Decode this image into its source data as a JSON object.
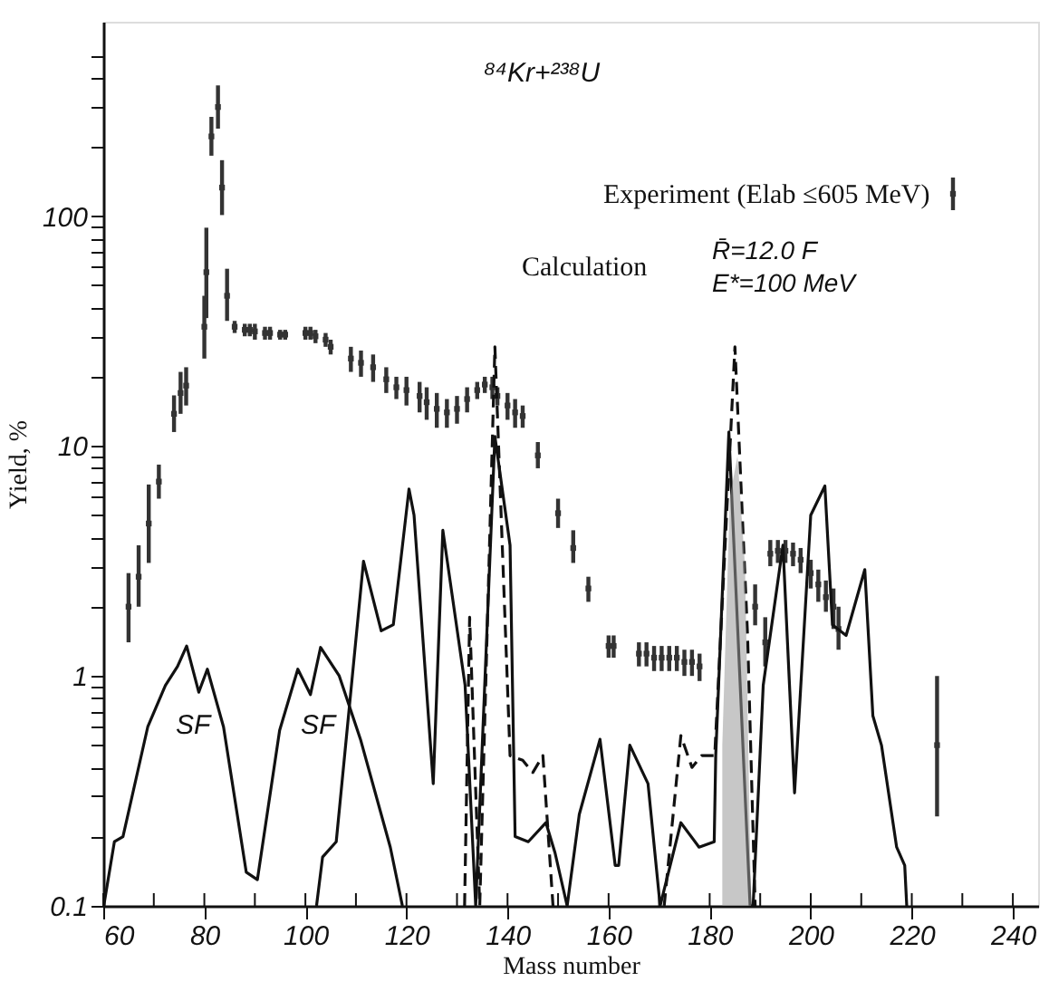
{
  "chart_data": {
    "type": "line",
    "xlabel": "Mass number",
    "ylabel": "Yield, %",
    "log": "y",
    "grid": false,
    "legend": "top right",
    "xlim": [
      60,
      245
    ],
    "ylim": [
      0.1,
      700
    ],
    "xticks": [
      60,
      {
        "value": 70,
        "label": null
      },
      80,
      {
        "value": 90,
        "label": null
      },
      100,
      {
        "value": 110,
        "label": null
      },
      120,
      {
        "value": 130,
        "label": null
      },
      140,
      {
        "value": 150,
        "label": null
      },
      160,
      {
        "value": 170,
        "label": null
      },
      180,
      {
        "value": 190,
        "label": null
      },
      200,
      {
        "value": 210,
        "label": null
      },
      220,
      {
        "value": 230,
        "label": null
      },
      240
    ],
    "yticks": [
      0.1,
      {
        "value": 0.2,
        "label": null
      },
      {
        "value": 0.3,
        "label": null
      },
      {
        "value": 0.4,
        "label": null
      },
      {
        "value": 0.5,
        "label": null
      },
      {
        "value": 0.6,
        "label": null
      },
      {
        "value": 0.7,
        "label": null
      },
      {
        "value": 0.8,
        "label": null
      },
      {
        "value": 0.9,
        "label": null
      },
      1,
      {
        "value": 2,
        "label": null
      },
      {
        "value": 3,
        "label": null
      },
      {
        "value": 4,
        "label": null
      },
      {
        "value": 5,
        "label": null
      },
      {
        "value": 6,
        "label": null
      },
      {
        "value": 7,
        "label": null
      },
      {
        "value": 8,
        "label": null
      },
      {
        "value": 9,
        "label": null
      },
      10,
      {
        "value": 20,
        "label": null
      },
      {
        "value": 30,
        "label": null
      },
      {
        "value": 40,
        "label": null
      },
      {
        "value": 50,
        "label": null
      },
      {
        "value": 60,
        "label": null
      },
      {
        "value": 70,
        "label": null
      },
      {
        "value": 80,
        "label": null
      },
      {
        "value": 90,
        "label": null
      },
      100,
      {
        "value": 200,
        "label": null
      },
      {
        "value": 300,
        "label": null
      },
      {
        "value": 400,
        "label": null
      },
      {
        "value": 500,
        "label": null
      }
    ],
    "annotations": [
      "⁸⁴Kr+²³⁸U",
      "Calculation",
      "R̄=12.0 F",
      "E*=100 MeV",
      "SF",
      "SF"
    ],
    "series": [
      {
        "name": "Experiment (Elab ≤605 MeV)",
        "type": "scatter",
        "marker": "square",
        "color": "#333333",
        "x": [
          65,
          67,
          69,
          71,
          74,
          75.3,
          76.4,
          80,
          80.4,
          81.4,
          82.7,
          83.5,
          84.5,
          86,
          88,
          89,
          90,
          92,
          93,
          95,
          96,
          100,
          101,
          102,
          104,
          105,
          109,
          111,
          113.4,
          116,
          118,
          120,
          122.6,
          124,
          126,
          128,
          130,
          132,
          134,
          135.5,
          137,
          138,
          140,
          141.5,
          143,
          146,
          150,
          153,
          156,
          160,
          161,
          166,
          167.5,
          169,
          170.5,
          172,
          173.5,
          175,
          176.5,
          178,
          189,
          191,
          192,
          193.5,
          195,
          196.5,
          198,
          200,
          201.5,
          203,
          204.5,
          205.5,
          225
        ],
        "values": [
          2.0,
          2.7,
          4.6,
          7.0,
          13.8,
          17,
          18.3,
          33,
          57,
          222,
          298,
          133,
          45,
          33,
          32,
          32,
          31.5,
          31,
          31,
          30.5,
          30.5,
          31,
          31,
          30,
          29,
          27,
          24,
          23,
          22,
          19.5,
          18,
          17.5,
          16.5,
          15.5,
          14.5,
          14,
          14.5,
          16,
          17.5,
          18.5,
          18,
          16.5,
          15,
          14,
          13.5,
          9.1,
          5.1,
          3.6,
          2.4,
          1.35,
          1.35,
          1.25,
          1.25,
          1.2,
          1.2,
          1.2,
          1.2,
          1.15,
          1.15,
          1.1,
          2.0,
          1.4,
          3.4,
          3.5,
          3.5,
          3.4,
          3.2,
          2.8,
          2.5,
          2.2,
          2.0,
          1.6,
          0.5
        ],
        "errors": [
          [
            1.4,
            2.8
          ],
          [
            2.0,
            3.7
          ],
          [
            3.1,
            6.8
          ],
          [
            5.9,
            8.3
          ],
          [
            11.5,
            16.6
          ],
          [
            13.8,
            21
          ],
          [
            15,
            22
          ],
          [
            24,
            45
          ],
          [
            36,
            89
          ],
          [
            183,
            270
          ],
          [
            240,
            370
          ],
          [
            101,
            175
          ],
          [
            35,
            59
          ],
          [
            31,
            35
          ],
          [
            30,
            34
          ],
          [
            30,
            34
          ],
          [
            29,
            34
          ],
          [
            29,
            33
          ],
          [
            29,
            33
          ],
          [
            29,
            32
          ],
          [
            29,
            32
          ],
          [
            29,
            33
          ],
          [
            29,
            33
          ],
          [
            28,
            32
          ],
          [
            27,
            31
          ],
          [
            25,
            29
          ],
          [
            21,
            27
          ],
          [
            20,
            26
          ],
          [
            19,
            25
          ],
          [
            17,
            22
          ],
          [
            16,
            20
          ],
          [
            15,
            20
          ],
          [
            14,
            19
          ],
          [
            13,
            18
          ],
          [
            12,
            17
          ],
          [
            12,
            16
          ],
          [
            12.5,
            16.5
          ],
          [
            14,
            18
          ],
          [
            16,
            19
          ],
          [
            17,
            20
          ],
          [
            16,
            20
          ],
          [
            15,
            18
          ],
          [
            13,
            17
          ],
          [
            12,
            16
          ],
          [
            12,
            15
          ],
          [
            8,
            10.4
          ],
          [
            4.4,
            5.9
          ],
          [
            3.1,
            4.3
          ],
          [
            2.1,
            2.7
          ],
          [
            1.2,
            1.5
          ],
          [
            1.2,
            1.5
          ],
          [
            1.1,
            1.4
          ],
          [
            1.1,
            1.4
          ],
          [
            1.05,
            1.35
          ],
          [
            1.05,
            1.35
          ],
          [
            1.05,
            1.35
          ],
          [
            1.05,
            1.35
          ],
          [
            1.0,
            1.3
          ],
          [
            1.0,
            1.3
          ],
          [
            0.95,
            1.25
          ],
          [
            1.66,
            2.5
          ],
          [
            1.1,
            1.8
          ],
          [
            3.0,
            3.9
          ],
          [
            3.1,
            3.9
          ],
          [
            3.1,
            3.9
          ],
          [
            3.0,
            3.8
          ],
          [
            2.8,
            3.6
          ],
          [
            2.4,
            3.2
          ],
          [
            2.1,
            2.9
          ],
          [
            1.9,
            2.6
          ],
          [
            1.6,
            2.4
          ],
          [
            1.3,
            2.0
          ],
          [
            0.245,
            1.0
          ]
        ]
      },
      {
        "line_style": "solid",
        "color": "#111111",
        "x": [
          60.1,
          62.2,
          63.9,
          68.8,
          72.3,
          74.7,
          76.5,
          78.9,
          80.6,
          83.8,
          88.3,
          90.5,
          94.9,
          98.5,
          101,
          103,
          106.7,
          110.9,
          116.8,
          119.2
        ],
        "values": [
          0.1,
          0.19,
          0.2,
          0.6,
          0.91,
          1.1,
          1.35,
          0.85,
          1.07,
          0.6,
          0.14,
          0.13,
          0.58,
          1.07,
          0.83,
          1.33,
          1.0,
          0.53,
          0.18,
          0.1
        ]
      },
      {
        "line_style": "solid",
        "color": "#111111",
        "x": [
          102.2,
          103.4,
          106.1,
          111.5,
          115,
          117.4,
          120.5,
          121.5,
          125.3,
          127.2,
          131.6,
          133.7,
          137.5,
          140.5,
          141.5,
          144.1,
          147.6,
          149.4,
          151.8,
          154.2,
          158.3,
          161.3,
          162,
          164.2,
          167.8,
          170.2,
          174.3,
          177.9,
          180.9,
          181.2,
          183.8,
          188,
          188.6,
          190.6,
          194.5,
          196.8,
          200,
          202.8,
          204.3,
          207,
          210.7,
          212.3,
          214,
          217,
          218.6,
          219
        ],
        "values": [
          0.1,
          0.163,
          0.19,
          3.15,
          1.57,
          1.67,
          6.5,
          5.0,
          0.34,
          4.3,
          0.91,
          0.1,
          11,
          3.7,
          0.2,
          0.19,
          0.23,
          0.17,
          0.1,
          0.25,
          0.53,
          0.15,
          0.15,
          0.5,
          0.34,
          0.1,
          0.23,
          0.18,
          0.19,
          0.45,
          11.5,
          0.1,
          0.1,
          0.91,
          3.7,
          0.31,
          5.0,
          6.7,
          1.67,
          1.5,
          2.9,
          0.67,
          0.5,
          0.18,
          0.15,
          0.1
        ]
      },
      {
        "type": "line",
        "line_style": "dashed",
        "color": "#111111",
        "x": [
          131.5,
          132.5,
          134.5,
          137.5,
          140.5,
          143,
          145,
          147,
          149,
          160,
          171,
          174.3,
          176.5,
          178.4,
          181,
          185,
          187.5,
          189
        ],
        "values": [
          0.1,
          1.8,
          0.1,
          27,
          0.45,
          0.43,
          0.38,
          0.45,
          0.1,
          null,
          0.1,
          0.55,
          0.4,
          0.45,
          0.45,
          27,
          1.5,
          0.1
        ]
      },
      {
        "type": "area",
        "color": "#999999",
        "x": [
          182.5,
          184,
          185.5,
          187,
          188.2
        ],
        "values": [
          0.5,
          6,
          9,
          3,
          0.1
        ]
      }
    ]
  }
}
